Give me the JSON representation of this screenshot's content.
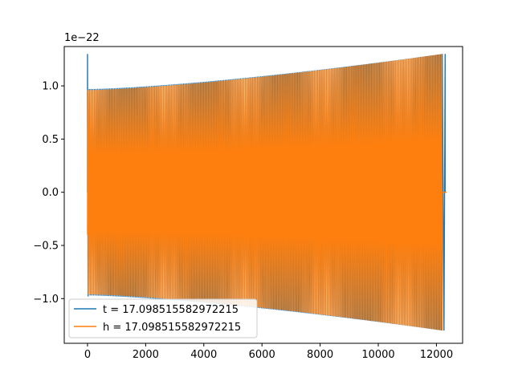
{
  "chart_data": {
    "type": "line",
    "title": "",
    "xlabel": "",
    "ylabel": "",
    "y_offset_label": "1e−22",
    "xlim": [
      -800,
      12900
    ],
    "ylim": [
      -1.42,
      1.37
    ],
    "y_scale_factor": 1e-22,
    "x_ticks": [
      {
        "value": 0,
        "label": "0"
      },
      {
        "value": 2000,
        "label": "2000"
      },
      {
        "value": 4000,
        "label": "4000"
      },
      {
        "value": 6000,
        "label": "6000"
      },
      {
        "value": 8000,
        "label": "8000"
      },
      {
        "value": 10000,
        "label": "10000"
      },
      {
        "value": 12000,
        "label": "12000"
      }
    ],
    "y_ticks": [
      {
        "value": -1.0,
        "label": "−1.0"
      },
      {
        "value": -0.5,
        "label": "−0.5"
      },
      {
        "value": 0.0,
        "label": "0.0"
      },
      {
        "value": 0.5,
        "label": "0.5"
      },
      {
        "value": 1.0,
        "label": "1.0"
      }
    ],
    "grid": false,
    "legend_position": "lower-left",
    "series": [
      {
        "name": "t = 17.098515582972215",
        "color": "#1f77b4",
        "description_values": {
          "x_start": 0,
          "x_end": 12300,
          "spike_start": 1.3,
          "amplitude_start": 0.97,
          "amplitude_end": 1.3,
          "end_spike": 1.3
        }
      },
      {
        "name": "h = 17.098515582972215",
        "color": "#ff7f0e",
        "description_values": {
          "x_start": 0,
          "x_end": 12200,
          "amplitude_start": 0.96,
          "amplitude_end": 1.3,
          "tail_value": 0.0,
          "tail_x_end": 12350
        }
      }
    ]
  }
}
